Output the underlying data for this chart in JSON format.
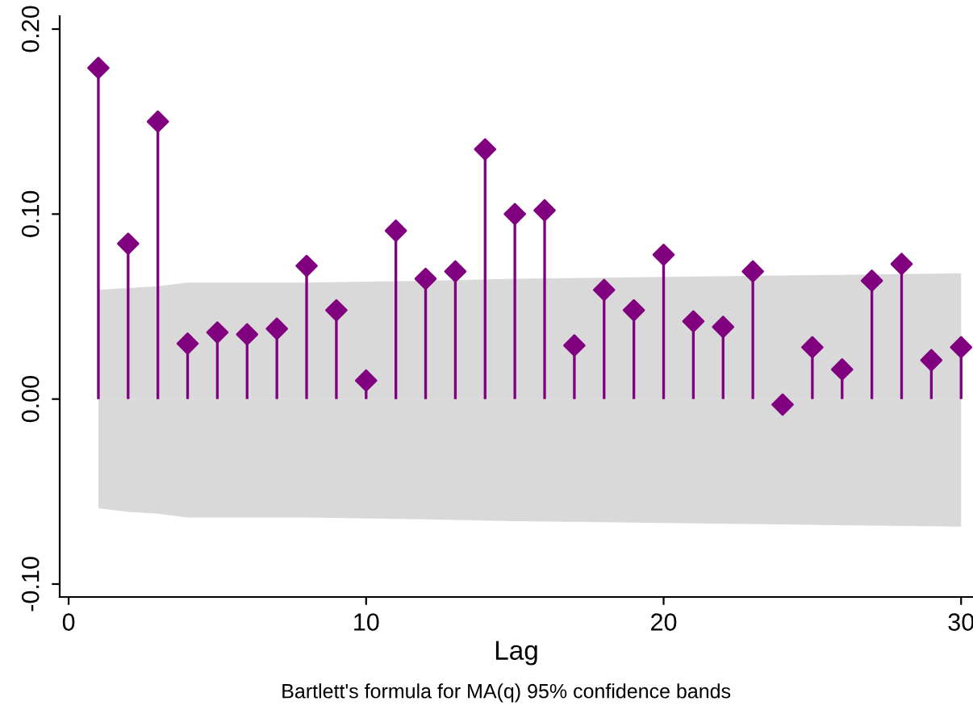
{
  "chart_data": {
    "type": "lollipop",
    "xlabel": "Lag",
    "annotations": [
      "Bartlett's formula for MA(q) 95% confidence bands"
    ],
    "xlim": [
      -0.3,
      30.4
    ],
    "ylim": [
      -0.107,
      0.207
    ],
    "xticks": [
      0,
      10,
      20,
      30
    ],
    "yticks": [
      {
        "value": -0.1,
        "label": "-0.10"
      },
      {
        "value": 0,
        "label": "0.00"
      },
      {
        "value": 0.1,
        "label": "0.10"
      },
      {
        "value": 0.2,
        "label": "0.20"
      }
    ],
    "grid": false,
    "series": [
      {
        "type": "area",
        "color": "#d9d9d9",
        "x": [
          1,
          2,
          3,
          4,
          8,
          12,
          15,
          20,
          25,
          30
        ],
        "values": [
          0.059,
          0.06,
          0.061,
          0.063,
          0.063,
          0.064,
          0.065,
          0.066,
          0.067,
          0.068
        ]
      },
      {
        "type": "area",
        "color": "#d9d9d9",
        "x": [
          1,
          2,
          3,
          4,
          8,
          12,
          15,
          20,
          25,
          30
        ],
        "values": [
          -0.059,
          -0.061,
          -0.062,
          -0.064,
          -0.064,
          -0.065,
          -0.066,
          -0.067,
          -0.068,
          -0.069
        ]
      },
      {
        "color": "#800080",
        "marker": "diamond",
        "x": [
          1,
          2,
          3,
          4,
          5,
          6,
          7,
          8,
          9,
          10,
          11,
          12,
          13,
          14,
          15,
          16,
          17,
          18,
          19,
          20,
          21,
          22,
          23,
          24,
          25,
          26,
          27,
          28,
          29,
          30
        ],
        "values": [
          0.179,
          0.084,
          0.15,
          0.03,
          0.036,
          0.035,
          0.038,
          0.072,
          0.048,
          0.01,
          0.091,
          0.065,
          0.069,
          0.135,
          0.1,
          0.102,
          0.029,
          0.059,
          0.048,
          0.078,
          0.042,
          0.039,
          0.069,
          -0.003,
          0.028,
          0.016,
          0.064,
          0.073,
          0.021,
          0.028
        ]
      }
    ]
  }
}
